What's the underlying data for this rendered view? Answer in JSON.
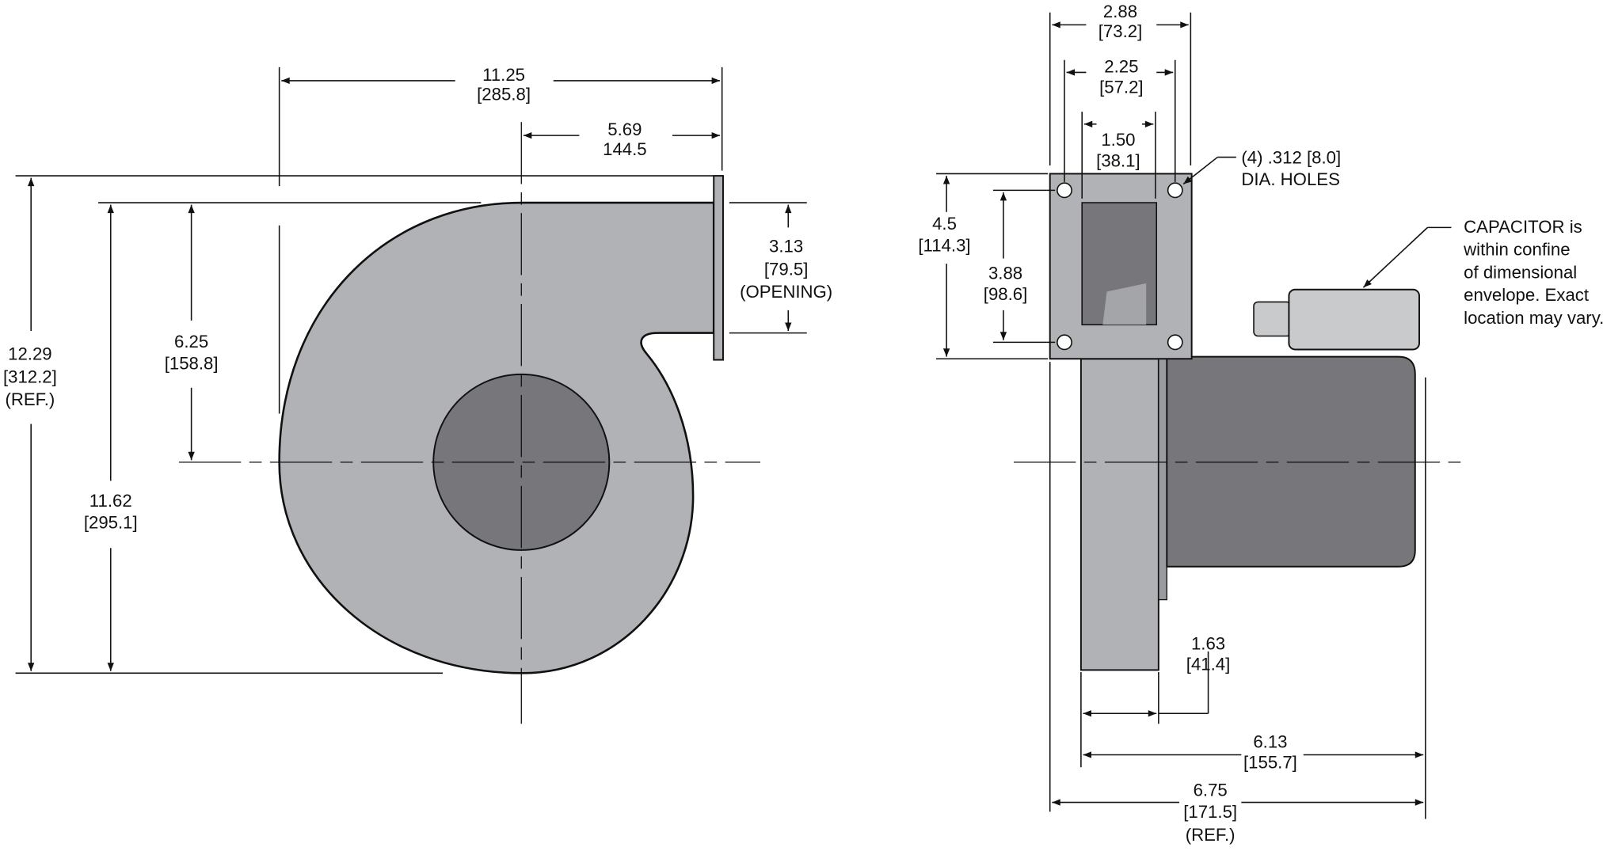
{
  "front_view": {
    "overall_width": [
      "11.25",
      "[285.8]"
    ],
    "outlet_offset": [
      "5.69",
      "144.5"
    ],
    "opening": [
      "3.13",
      "[79.5]",
      "(OPENING)"
    ],
    "center_height": [
      "6.25",
      "[158.8]"
    ],
    "overall_height": [
      "12.29",
      "[312.2]",
      "(REF.)"
    ],
    "housing_height": [
      "11.62",
      "[295.1]"
    ]
  },
  "side_view": {
    "flange_width": [
      "2.88",
      "[73.2]"
    ],
    "hole_spacing": [
      "2.25",
      "[57.2]"
    ],
    "opening_width": [
      "1.50",
      "[38.1]"
    ],
    "flange_height": [
      "4.5",
      "[114.3]"
    ],
    "hole_vertical": [
      "3.88",
      "[98.6]"
    ],
    "holes_note": [
      "(4) .312 [8.0]",
      "DIA. HOLES"
    ],
    "capacitor_note": [
      "CAPACITOR is",
      "within confine",
      "of dimensional",
      "envelope. Exact",
      "location may vary."
    ],
    "housing_depth": [
      "1.63",
      "[41.4]"
    ],
    "motor_depth": [
      "6.13",
      "[155.7]"
    ],
    "overall_depth": [
      "6.75",
      "[171.5]",
      "(REF.)"
    ]
  }
}
